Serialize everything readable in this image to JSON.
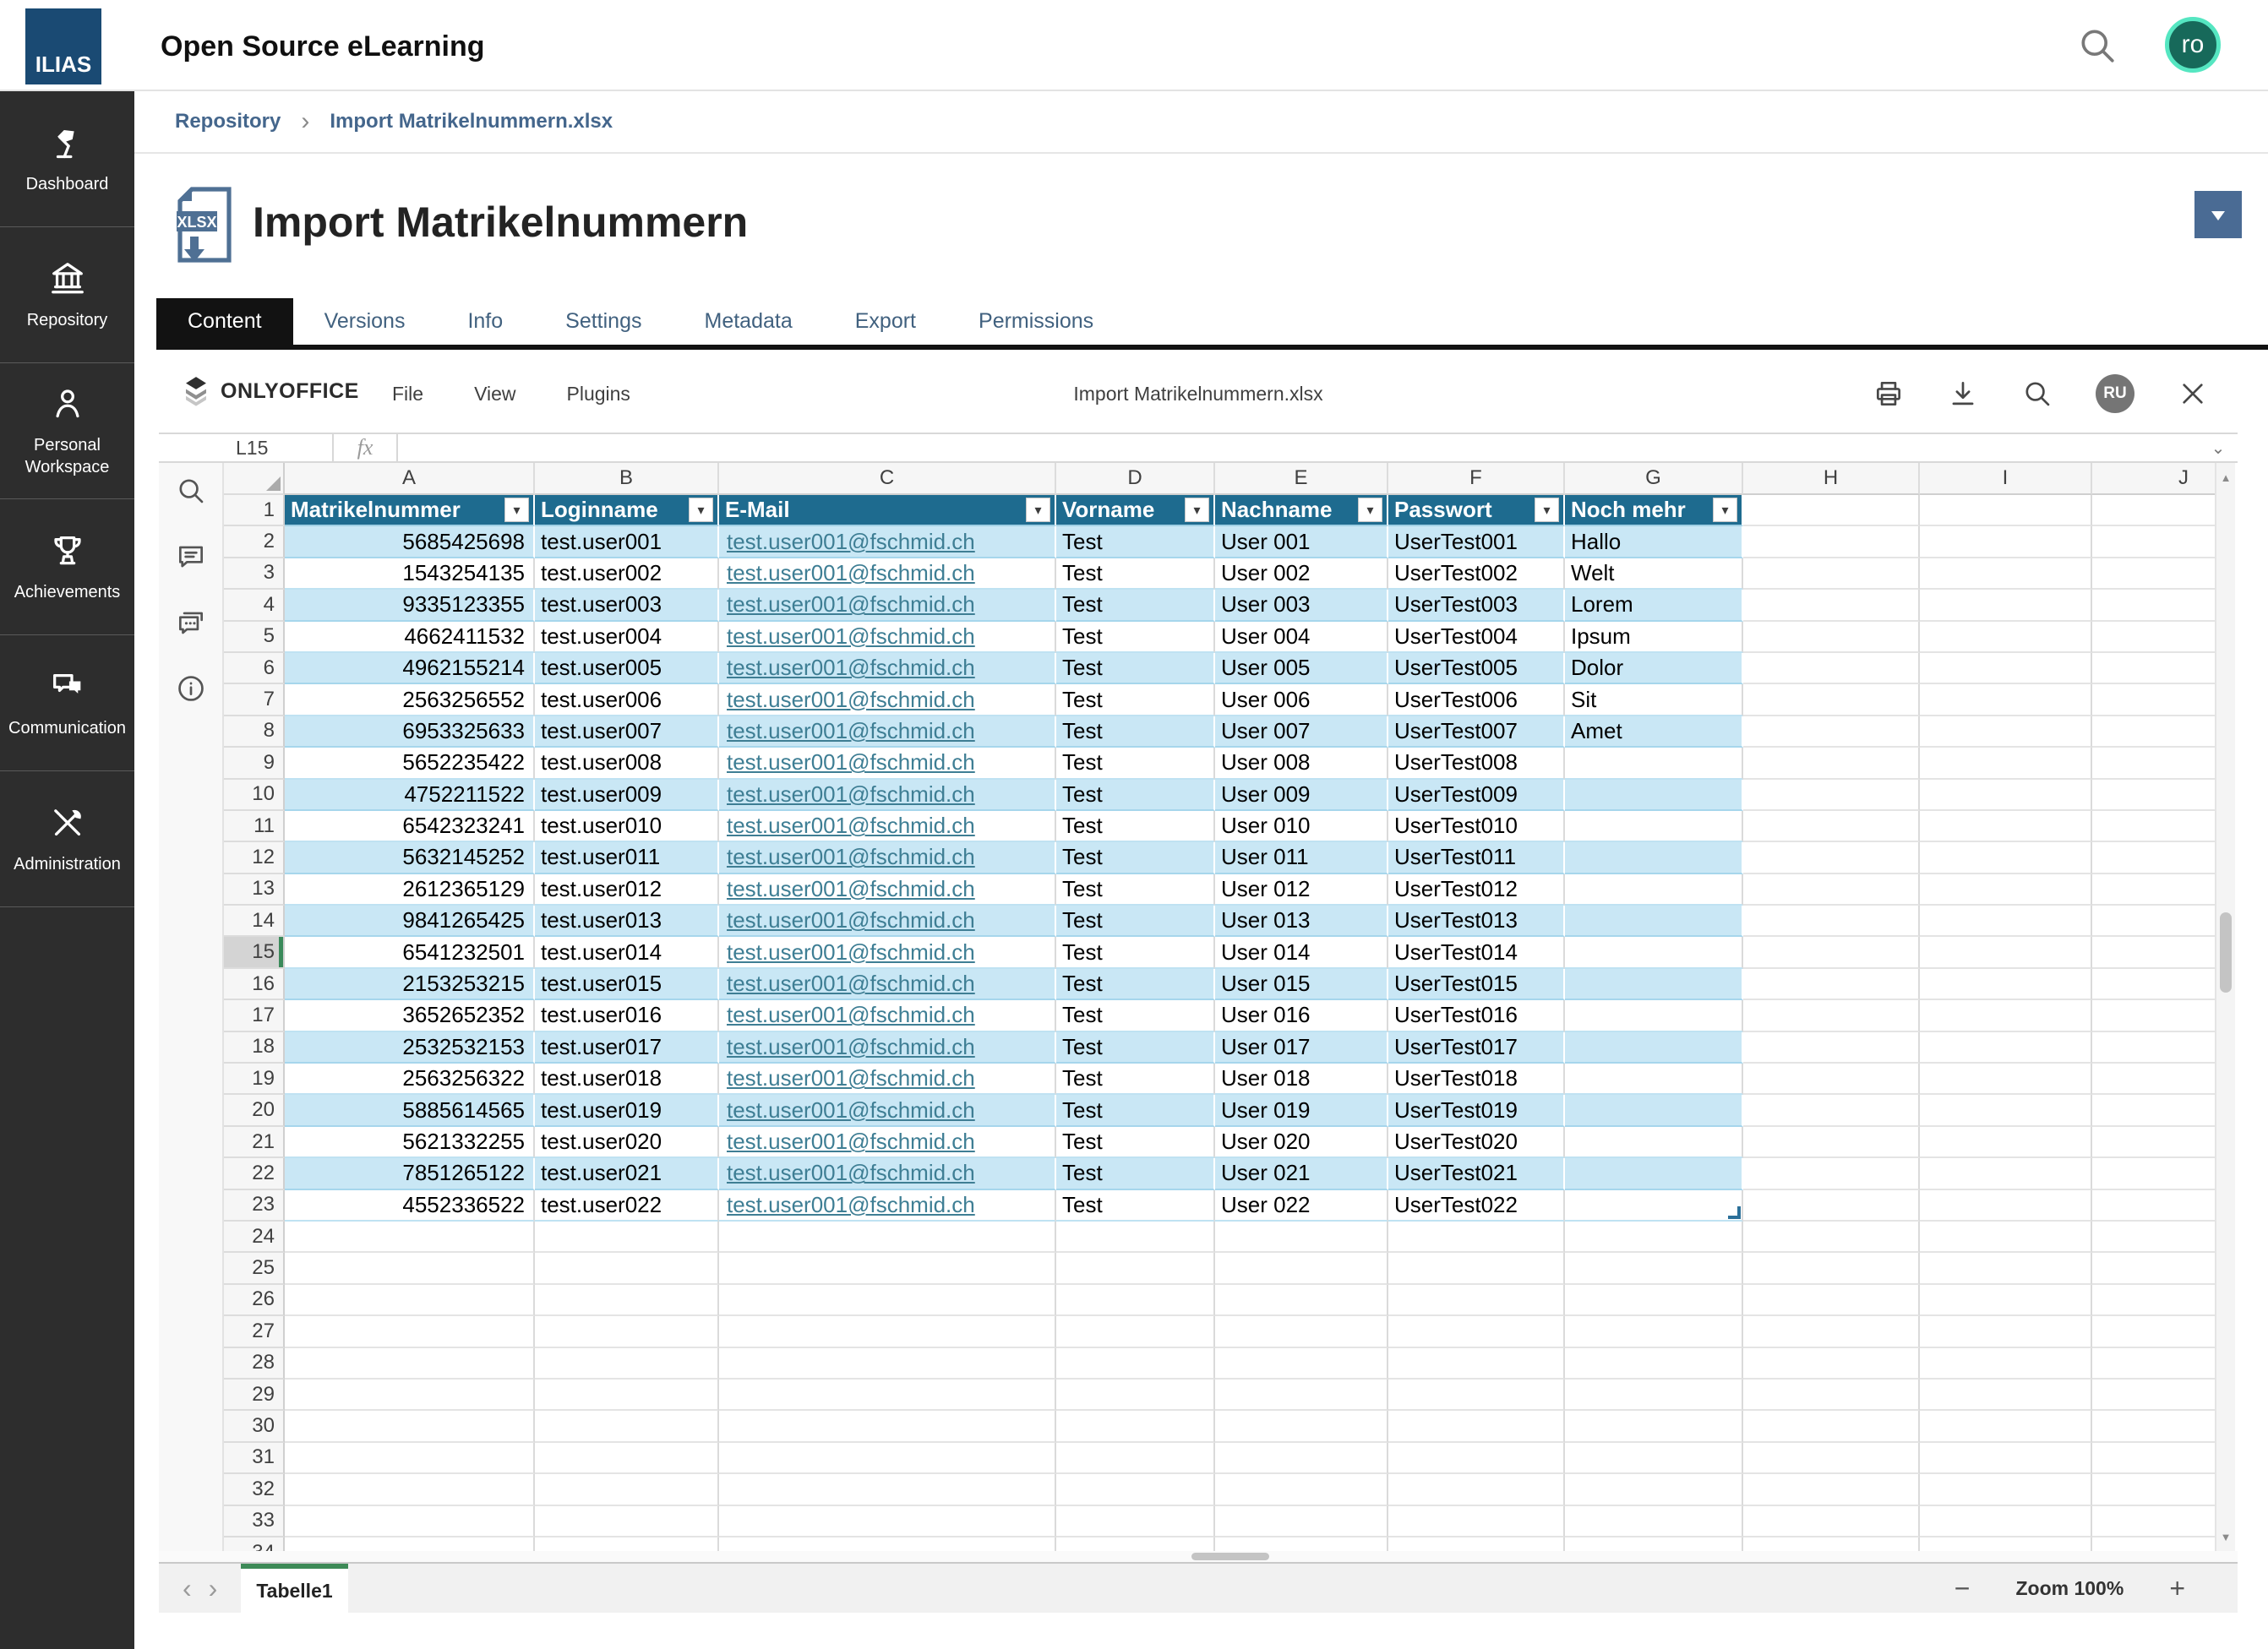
{
  "app": {
    "brand": "ILIAS",
    "title": "Open Source eLearning",
    "user_initials": "ro"
  },
  "sidebar": {
    "items": [
      {
        "label": "Dashboard",
        "icon": "desk-lamp-icon"
      },
      {
        "label": "Repository",
        "icon": "institution-icon"
      },
      {
        "label": "Personal Workspace",
        "icon": "person-icon"
      },
      {
        "label": "Achievements",
        "icon": "trophy-icon"
      },
      {
        "label": "Communication",
        "icon": "chat-bubbles-icon"
      },
      {
        "label": "Administration",
        "icon": "tools-icon"
      }
    ]
  },
  "breadcrumb": {
    "items": [
      "Repository",
      "Import Matrikelnummern.xlsx"
    ]
  },
  "page": {
    "title": "Import Matrikelnummern",
    "file_type": "xlsx"
  },
  "tabs": {
    "items": [
      {
        "label": "Content",
        "active": true
      },
      {
        "label": "Versions",
        "active": false
      },
      {
        "label": "Info",
        "active": false
      },
      {
        "label": "Settings",
        "active": false
      },
      {
        "label": "Metadata",
        "active": false
      },
      {
        "label": "Export",
        "active": false
      },
      {
        "label": "Permissions",
        "active": false
      }
    ]
  },
  "editor": {
    "brand": "ONLYOFFICE",
    "menus": [
      "File",
      "View",
      "Plugins"
    ],
    "doc_title": "Import Matrikelnummern.xlsx",
    "user_badge": "RU",
    "toolbar_icons": [
      "print-icon",
      "download-icon",
      "search-icon",
      "close-icon"
    ],
    "left_panel_icons": [
      "search-icon",
      "comment-icon",
      "chat-icon",
      "info-icon"
    ]
  },
  "formula_bar": {
    "cell_reference": "L15",
    "fx_label": "fx",
    "formula_value": ""
  },
  "spreadsheet": {
    "columns": [
      "A",
      "B",
      "C",
      "D",
      "E",
      "F",
      "G",
      "H",
      "I",
      "J"
    ],
    "visible_row_count": 34,
    "selected_row": 15,
    "selected_cell": "L15",
    "sheet_tab": "Tabelle1",
    "zoom_label": "Zoom 100%",
    "table": {
      "header": [
        "Matrikelnummer",
        "Loginname",
        "E-Mail",
        "Vorname",
        "Nachname",
        "Passwort",
        "Noch mehr"
      ],
      "rows": [
        {
          "matrikelnummer": "5685425698",
          "loginname": "test.user001",
          "email": "test.user001@fschmid.ch",
          "vorname": "Test",
          "nachname": "User 001",
          "passwort": "UserTest001",
          "noch_mehr": "Hallo"
        },
        {
          "matrikelnummer": "1543254135",
          "loginname": "test.user002",
          "email": "test.user001@fschmid.ch",
          "vorname": "Test",
          "nachname": "User 002",
          "passwort": "UserTest002",
          "noch_mehr": "Welt"
        },
        {
          "matrikelnummer": "9335123355",
          "loginname": "test.user003",
          "email": "test.user001@fschmid.ch",
          "vorname": "Test",
          "nachname": "User 003",
          "passwort": "UserTest003",
          "noch_mehr": "Lorem"
        },
        {
          "matrikelnummer": "4662411532",
          "loginname": "test.user004",
          "email": "test.user001@fschmid.ch",
          "vorname": "Test",
          "nachname": "User 004",
          "passwort": "UserTest004",
          "noch_mehr": "Ipsum"
        },
        {
          "matrikelnummer": "4962155214",
          "loginname": "test.user005",
          "email": "test.user001@fschmid.ch",
          "vorname": "Test",
          "nachname": "User 005",
          "passwort": "UserTest005",
          "noch_mehr": "Dolor"
        },
        {
          "matrikelnummer": "2563256552",
          "loginname": "test.user006",
          "email": "test.user001@fschmid.ch",
          "vorname": "Test",
          "nachname": "User 006",
          "passwort": "UserTest006",
          "noch_mehr": "Sit"
        },
        {
          "matrikelnummer": "6953325633",
          "loginname": "test.user007",
          "email": "test.user001@fschmid.ch",
          "vorname": "Test",
          "nachname": "User 007",
          "passwort": "UserTest007",
          "noch_mehr": "Amet"
        },
        {
          "matrikelnummer": "5652235422",
          "loginname": "test.user008",
          "email": "test.user001@fschmid.ch",
          "vorname": "Test",
          "nachname": "User 008",
          "passwort": "UserTest008",
          "noch_mehr": ""
        },
        {
          "matrikelnummer": "4752211522",
          "loginname": "test.user009",
          "email": "test.user001@fschmid.ch",
          "vorname": "Test",
          "nachname": "User 009",
          "passwort": "UserTest009",
          "noch_mehr": ""
        },
        {
          "matrikelnummer": "6542323241",
          "loginname": "test.user010",
          "email": "test.user001@fschmid.ch",
          "vorname": "Test",
          "nachname": "User 010",
          "passwort": "UserTest010",
          "noch_mehr": ""
        },
        {
          "matrikelnummer": "5632145252",
          "loginname": "test.user011",
          "email": "test.user001@fschmid.ch",
          "vorname": "Test",
          "nachname": "User 011",
          "passwort": "UserTest011",
          "noch_mehr": ""
        },
        {
          "matrikelnummer": "2612365129",
          "loginname": "test.user012",
          "email": "test.user001@fschmid.ch",
          "vorname": "Test",
          "nachname": "User 012",
          "passwort": "UserTest012",
          "noch_mehr": ""
        },
        {
          "matrikelnummer": "9841265425",
          "loginname": "test.user013",
          "email": "test.user001@fschmid.ch",
          "vorname": "Test",
          "nachname": "User 013",
          "passwort": "UserTest013",
          "noch_mehr": ""
        },
        {
          "matrikelnummer": "6541232501",
          "loginname": "test.user014",
          "email": "test.user001@fschmid.ch",
          "vorname": "Test",
          "nachname": "User 014",
          "passwort": "UserTest014",
          "noch_mehr": ""
        },
        {
          "matrikelnummer": "2153253215",
          "loginname": "test.user015",
          "email": "test.user001@fschmid.ch",
          "vorname": "Test",
          "nachname": "User 015",
          "passwort": "UserTest015",
          "noch_mehr": ""
        },
        {
          "matrikelnummer": "3652652352",
          "loginname": "test.user016",
          "email": "test.user001@fschmid.ch",
          "vorname": "Test",
          "nachname": "User 016",
          "passwort": "UserTest016",
          "noch_mehr": ""
        },
        {
          "matrikelnummer": "2532532153",
          "loginname": "test.user017",
          "email": "test.user001@fschmid.ch",
          "vorname": "Test",
          "nachname": "User 017",
          "passwort": "UserTest017",
          "noch_mehr": ""
        },
        {
          "matrikelnummer": "2563256322",
          "loginname": "test.user018",
          "email": "test.user001@fschmid.ch",
          "vorname": "Test",
          "nachname": "User 018",
          "passwort": "UserTest018",
          "noch_mehr": ""
        },
        {
          "matrikelnummer": "5885614565",
          "loginname": "test.user019",
          "email": "test.user001@fschmid.ch",
          "vorname": "Test",
          "nachname": "User 019",
          "passwort": "UserTest019",
          "noch_mehr": ""
        },
        {
          "matrikelnummer": "5621332255",
          "loginname": "test.user020",
          "email": "test.user001@fschmid.ch",
          "vorname": "Test",
          "nachname": "User 020",
          "passwort": "UserTest020",
          "noch_mehr": ""
        },
        {
          "matrikelnummer": "7851265122",
          "loginname": "test.user021",
          "email": "test.user001@fschmid.ch",
          "vorname": "Test",
          "nachname": "User 021",
          "passwort": "UserTest021",
          "noch_mehr": ""
        },
        {
          "matrikelnummer": "4552336522",
          "loginname": "test.user022",
          "email": "test.user001@fschmid.ch",
          "vorname": "Test",
          "nachname": "User 022",
          "passwort": "UserTest022",
          "noch_mehr": ""
        }
      ]
    }
  },
  "colors": {
    "logo_bg": "#1a4a73",
    "sidebar_bg": "#2d2d2d",
    "breadcrumb_link": "#44668c",
    "active_tab_bg": "#121212",
    "accent_button": "#4a6b94",
    "table_header_bg": "#1e6b8f",
    "band_row_bg": "#c9e7f5",
    "email_link": "#3e7e94",
    "avatar_bg": "#17695a",
    "avatar_ring": "#55e6c1",
    "active_sheet_accent": "#3d8a57",
    "selected_row_accent": "#3a8a5a"
  }
}
